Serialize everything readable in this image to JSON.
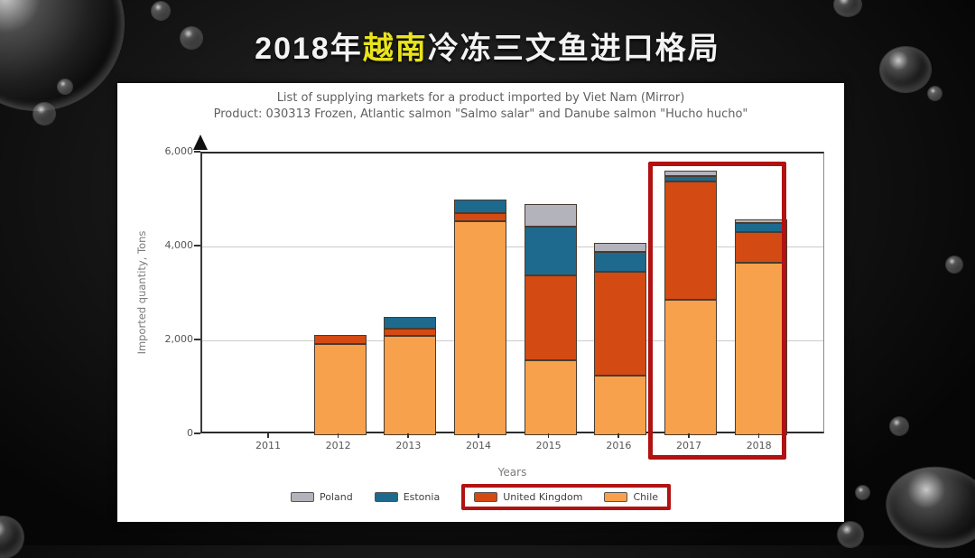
{
  "slide": {
    "title": {
      "prefix": "2018年",
      "highlight": "越南",
      "suffix": "冷冻三文鱼进口格局",
      "highlight_color": "#e9e41c"
    }
  },
  "chart": {
    "title_line1": "List of supplying markets for a product imported by Viet Nam (Mirror)",
    "title_line2": "Product: 030313 Frozen, Atlantic salmon \"Salmo salar\" and Danube salmon \"Hucho hucho\"",
    "ylabel": "Imported quantity, Tons",
    "xlabel": "Years"
  },
  "chart_data": {
    "type": "bar",
    "stacked": true,
    "title": "List of supplying markets for a product imported by Viet Nam (Mirror)",
    "subtitle": "Product: 030313 Frozen, Atlantic salmon \"Salmo salar\" and Danube salmon \"Hucho hucho\"",
    "xlabel": "Years",
    "ylabel": "Imported quantity, Tons",
    "ylim": [
      0,
      6000
    ],
    "grid": true,
    "legend_position": "bottom",
    "categories": [
      "2011",
      "2012",
      "2013",
      "2014",
      "2015",
      "2016",
      "2017",
      "2018"
    ],
    "yticks": [
      {
        "value": 0,
        "label": "0"
      },
      {
        "value": 2000,
        "label": "2,000"
      },
      {
        "value": 4000,
        "label": "4,000"
      },
      {
        "value": 6000,
        "label": "6,000"
      }
    ],
    "series": [
      {
        "name": "Chile",
        "color": "#f8a14c",
        "values": [
          0,
          1950,
          2120,
          4550,
          1600,
          1260,
          2880,
          3680
        ]
      },
      {
        "name": "United Kingdom",
        "color": "#d34a12",
        "values": [
          0,
          180,
          140,
          190,
          1800,
          2220,
          2530,
          640
        ]
      },
      {
        "name": "Estonia",
        "color": "#1d6a8e",
        "values": [
          0,
          0,
          250,
          280,
          1040,
          430,
          100,
          200
        ]
      },
      {
        "name": "Poland",
        "color": "#b3b3bc",
        "values": [
          0,
          0,
          0,
          0,
          480,
          180,
          130,
          80
        ]
      }
    ],
    "legend": [
      {
        "label": "Poland",
        "color": "#b3b3bc",
        "highlighted": false
      },
      {
        "label": "Estonia",
        "color": "#1d6a8e",
        "highlighted": false
      },
      {
        "label": "United Kingdom",
        "color": "#d34a12",
        "highlighted": true
      },
      {
        "label": "Chile",
        "color": "#f8a14c",
        "highlighted": true
      }
    ],
    "highlight_categories": [
      "2017",
      "2018"
    ],
    "highlight_color": "#b11212"
  }
}
